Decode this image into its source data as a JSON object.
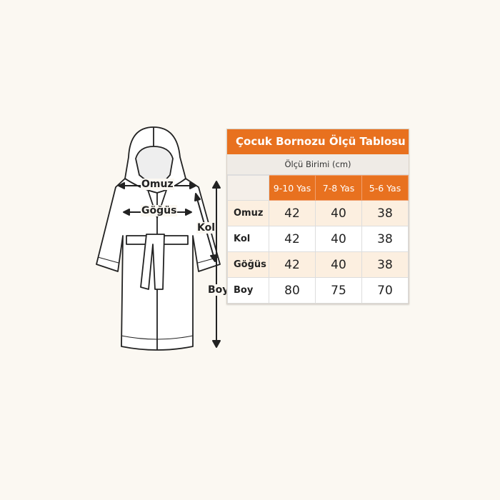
{
  "diagram_labels": {
    "shoulder": "Omuz",
    "chest": "Göğüs",
    "sleeve": "Kol",
    "length": "Boy"
  },
  "chart": {
    "title": "Çocuk Bornozu Ölçü Tablosu",
    "unit": "Ölçü Birimi (cm)",
    "columns": [
      "9-10 Yas",
      "7-8 Yas",
      "5-6 Yas"
    ],
    "rows": [
      {
        "label": "Omuz",
        "values": [
          "42",
          "40",
          "38"
        ]
      },
      {
        "label": "Kol",
        "values": [
          "42",
          "40",
          "38"
        ]
      },
      {
        "label": "Göğüs",
        "values": [
          "42",
          "40",
          "38"
        ]
      },
      {
        "label": "Boy",
        "values": [
          "80",
          "75",
          "70"
        ]
      }
    ]
  },
  "colors": {
    "accent": "#e8711f",
    "row_tint": "#fcefe0",
    "background": "#fbf8f2"
  }
}
